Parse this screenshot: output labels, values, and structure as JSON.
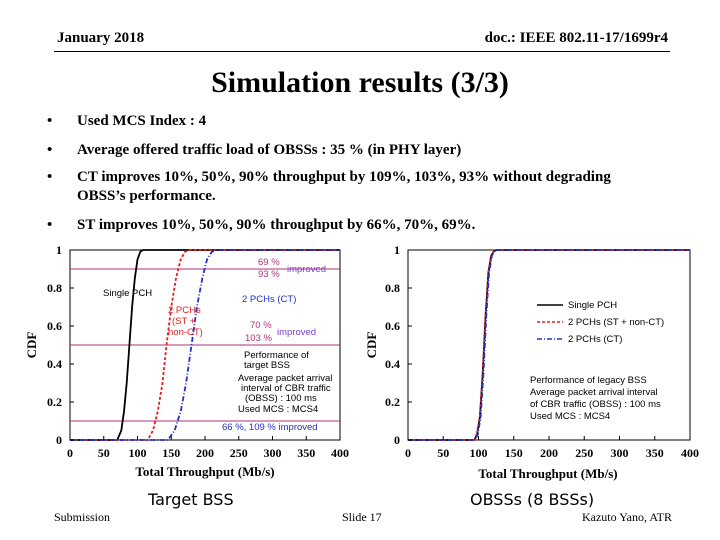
{
  "header": {
    "date": "January 2018",
    "doc_id": "doc.: IEEE 802.11-17/1699r4"
  },
  "title": "Simulation results (3/3)",
  "bullets": [
    {
      "symbol": "•",
      "text": "Used MCS Index : 4"
    },
    {
      "symbol": "•",
      "text": "Average offered traffic load of OBSSs : 35 % (in PHY layer)"
    },
    {
      "symbol": "•",
      "text": "CT improves 10%, 50%, 90% throughput by 109%, 103%, 93% without degrading OBSS’s performance."
    },
    {
      "symbol": "•",
      "text": "ST improves 10%, 50%, 90% throughput by 66%, 70%, 69%."
    }
  ],
  "footer": {
    "left": "Submission",
    "center": "Slide 17",
    "right": "Kazuto Yano, ATR"
  },
  "colors": {
    "red": "#e02020",
    "blue": "#2030c8",
    "purple": "#b0307a",
    "highlight": "#7a3ed0"
  },
  "chart_data": [
    {
      "type": "line",
      "caption": "Target BSS",
      "xlabel": "Total Throughput (Mb/s)",
      "ylabel": "CDF",
      "xlim": [
        0,
        400
      ],
      "ylim": [
        0,
        1
      ],
      "xticks": [
        "0",
        "50",
        "100",
        "150",
        "200",
        "250",
        "300",
        "350",
        "400"
      ],
      "yticks": [
        "0",
        "0.2",
        "0.4",
        "0.6",
        "0.8",
        "1"
      ],
      "series": [
        {
          "name": "Single PCH",
          "x": [
            70,
            76,
            80,
            84,
            88,
            92,
            96,
            100,
            104,
            108
          ],
          "y": [
            0,
            0.05,
            0.15,
            0.3,
            0.5,
            0.7,
            0.85,
            0.95,
            0.99,
            1
          ]
        },
        {
          "name": "2 PCHs (ST + non-CT)",
          "x": [
            115,
            123,
            130,
            137,
            143,
            150,
            157,
            164,
            170,
            176
          ],
          "y": [
            0,
            0.05,
            0.15,
            0.3,
            0.5,
            0.7,
            0.85,
            0.95,
            0.99,
            1
          ]
        },
        {
          "name": "2 PCHs (CT)",
          "x": [
            145,
            155,
            164,
            172,
            180,
            188,
            196,
            203,
            210,
            216
          ],
          "y": [
            0,
            0.05,
            0.15,
            0.3,
            0.5,
            0.7,
            0.85,
            0.95,
            0.99,
            1
          ]
        }
      ],
      "annotations": {
        "single_pch": "Single PCH",
        "st_line1": "2 PCHs",
        "st_line2": "(ST +",
        "st_line3": "non-CT)",
        "ct": "2 PCHs (CT)",
        "ct_90": "93 %",
        "st_90": "69 %",
        "improved_top": "improved",
        "st_50": "70 %",
        "ct_50": "103 %",
        "improved_mid": "improved",
        "bottom_note": "66 %, 109 % improved",
        "perf_lines": [
          "Performance of",
          "target BSS",
          "Average packet arrival",
          "interval of CBR traffic",
          "(OBSS) : 100 ms",
          "Used MCS : MCS4"
        ]
      }
    },
    {
      "type": "line",
      "caption": "OBSSs (8 BSSs)",
      "xlabel": "Total Throughput (Mb/s)",
      "ylabel": "CDF",
      "xlim": [
        0,
        400
      ],
      "ylim": [
        0,
        1
      ],
      "xticks": [
        "0",
        "50",
        "100",
        "150",
        "200",
        "250",
        "300",
        "350",
        "400"
      ],
      "yticks": [
        "0",
        "0.2",
        "0.4",
        "0.6",
        "0.8",
        "1"
      ],
      "series": [
        {
          "name": "Single PCH",
          "x": [
            94,
            98,
            102,
            106,
            110,
            114,
            118,
            122,
            126
          ],
          "y": [
            0,
            0.03,
            0.12,
            0.35,
            0.65,
            0.88,
            0.97,
            0.995,
            1
          ]
        },
        {
          "name": "2 PCHs (ST + non-CT)",
          "x": [
            94,
            98,
            102,
            106,
            110,
            114,
            118,
            122,
            126
          ],
          "y": [
            0,
            0.035,
            0.13,
            0.36,
            0.66,
            0.885,
            0.972,
            0.996,
            1
          ]
        },
        {
          "name": "2 PCHs (CT)",
          "x": [
            95,
            99,
            103,
            107,
            111,
            115,
            119,
            123,
            127
          ],
          "y": [
            0,
            0.03,
            0.12,
            0.35,
            0.65,
            0.88,
            0.97,
            0.995,
            1
          ]
        }
      ],
      "legend": [
        "Single PCH",
        "2 PCHs (ST + non-CT)",
        "2 PCHs (CT)"
      ],
      "annotations": {
        "perf_lines": [
          "Performance of legacy BSS",
          "Average packet arrival interval",
          "of CBR traffic (OBSS) : 100 ms",
          "Used MCS : MCS4"
        ]
      }
    }
  ]
}
